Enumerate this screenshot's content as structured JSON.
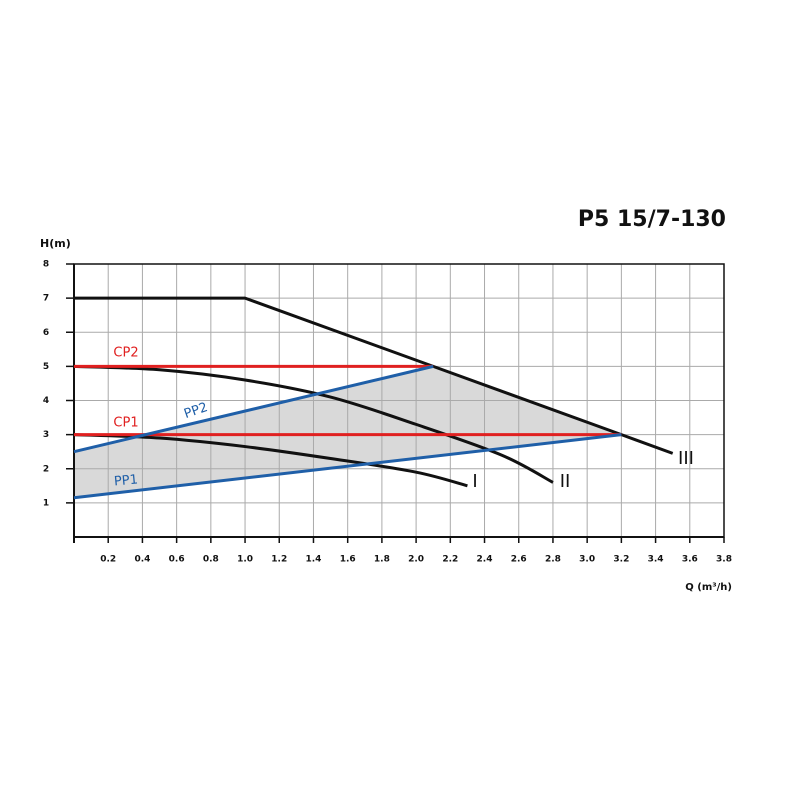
{
  "chart_data": {
    "type": "line",
    "title": "P5 15/7-130",
    "y_label": "H(m)",
    "x_label": "Q (m³/h)",
    "xlim": [
      0,
      3.8
    ],
    "ylim": [
      0,
      8
    ],
    "xticks": [
      0.2,
      0.4,
      0.6,
      0.8,
      {
        "value": 1,
        "label": "1.0"
      },
      1.2,
      1.4,
      1.6,
      1.8,
      {
        "value": 2,
        "label": "2.0"
      },
      2.2,
      2.4,
      2.6,
      2.8,
      {
        "value": 3,
        "label": "3.0"
      },
      3.2,
      3.4,
      3.6,
      3.8
    ],
    "yticks": [
      1,
      2,
      3,
      4,
      5,
      6,
      7,
      8
    ],
    "grid": true,
    "series": [
      {
        "name": "III",
        "color": "#111111",
        "x": [
          0,
          1.0,
          2.1,
          3.2,
          3.5
        ],
        "values": [
          7,
          7,
          5.0,
          3.0,
          2.45
        ]
      },
      {
        "name": "II",
        "color": "#111111",
        "x": [
          0,
          0.5,
          1.0,
          1.5,
          2.0,
          2.5,
          2.8
        ],
        "values": [
          5,
          4.9,
          4.6,
          4.1,
          3.3,
          2.4,
          1.6
        ]
      },
      {
        "name": "I",
        "color": "#111111",
        "x": [
          0,
          0.5,
          1.0,
          1.5,
          2.0,
          2.3
        ],
        "values": [
          3,
          2.9,
          2.65,
          2.3,
          1.9,
          1.5
        ]
      },
      {
        "name": "CP2",
        "color": "#e02020",
        "x": [
          0,
          2.1
        ],
        "values": [
          5,
          5
        ]
      },
      {
        "name": "CP1",
        "color": "#e02020",
        "x": [
          0,
          3.2
        ],
        "values": [
          3,
          3
        ]
      },
      {
        "name": "PP2",
        "color": "#1f5fa8",
        "x": [
          0,
          2.1
        ],
        "values": [
          2.5,
          5
        ]
      },
      {
        "name": "PP1",
        "color": "#1f5fa8",
        "x": [
          0,
          3.2
        ],
        "values": [
          1.15,
          3
        ]
      }
    ]
  }
}
